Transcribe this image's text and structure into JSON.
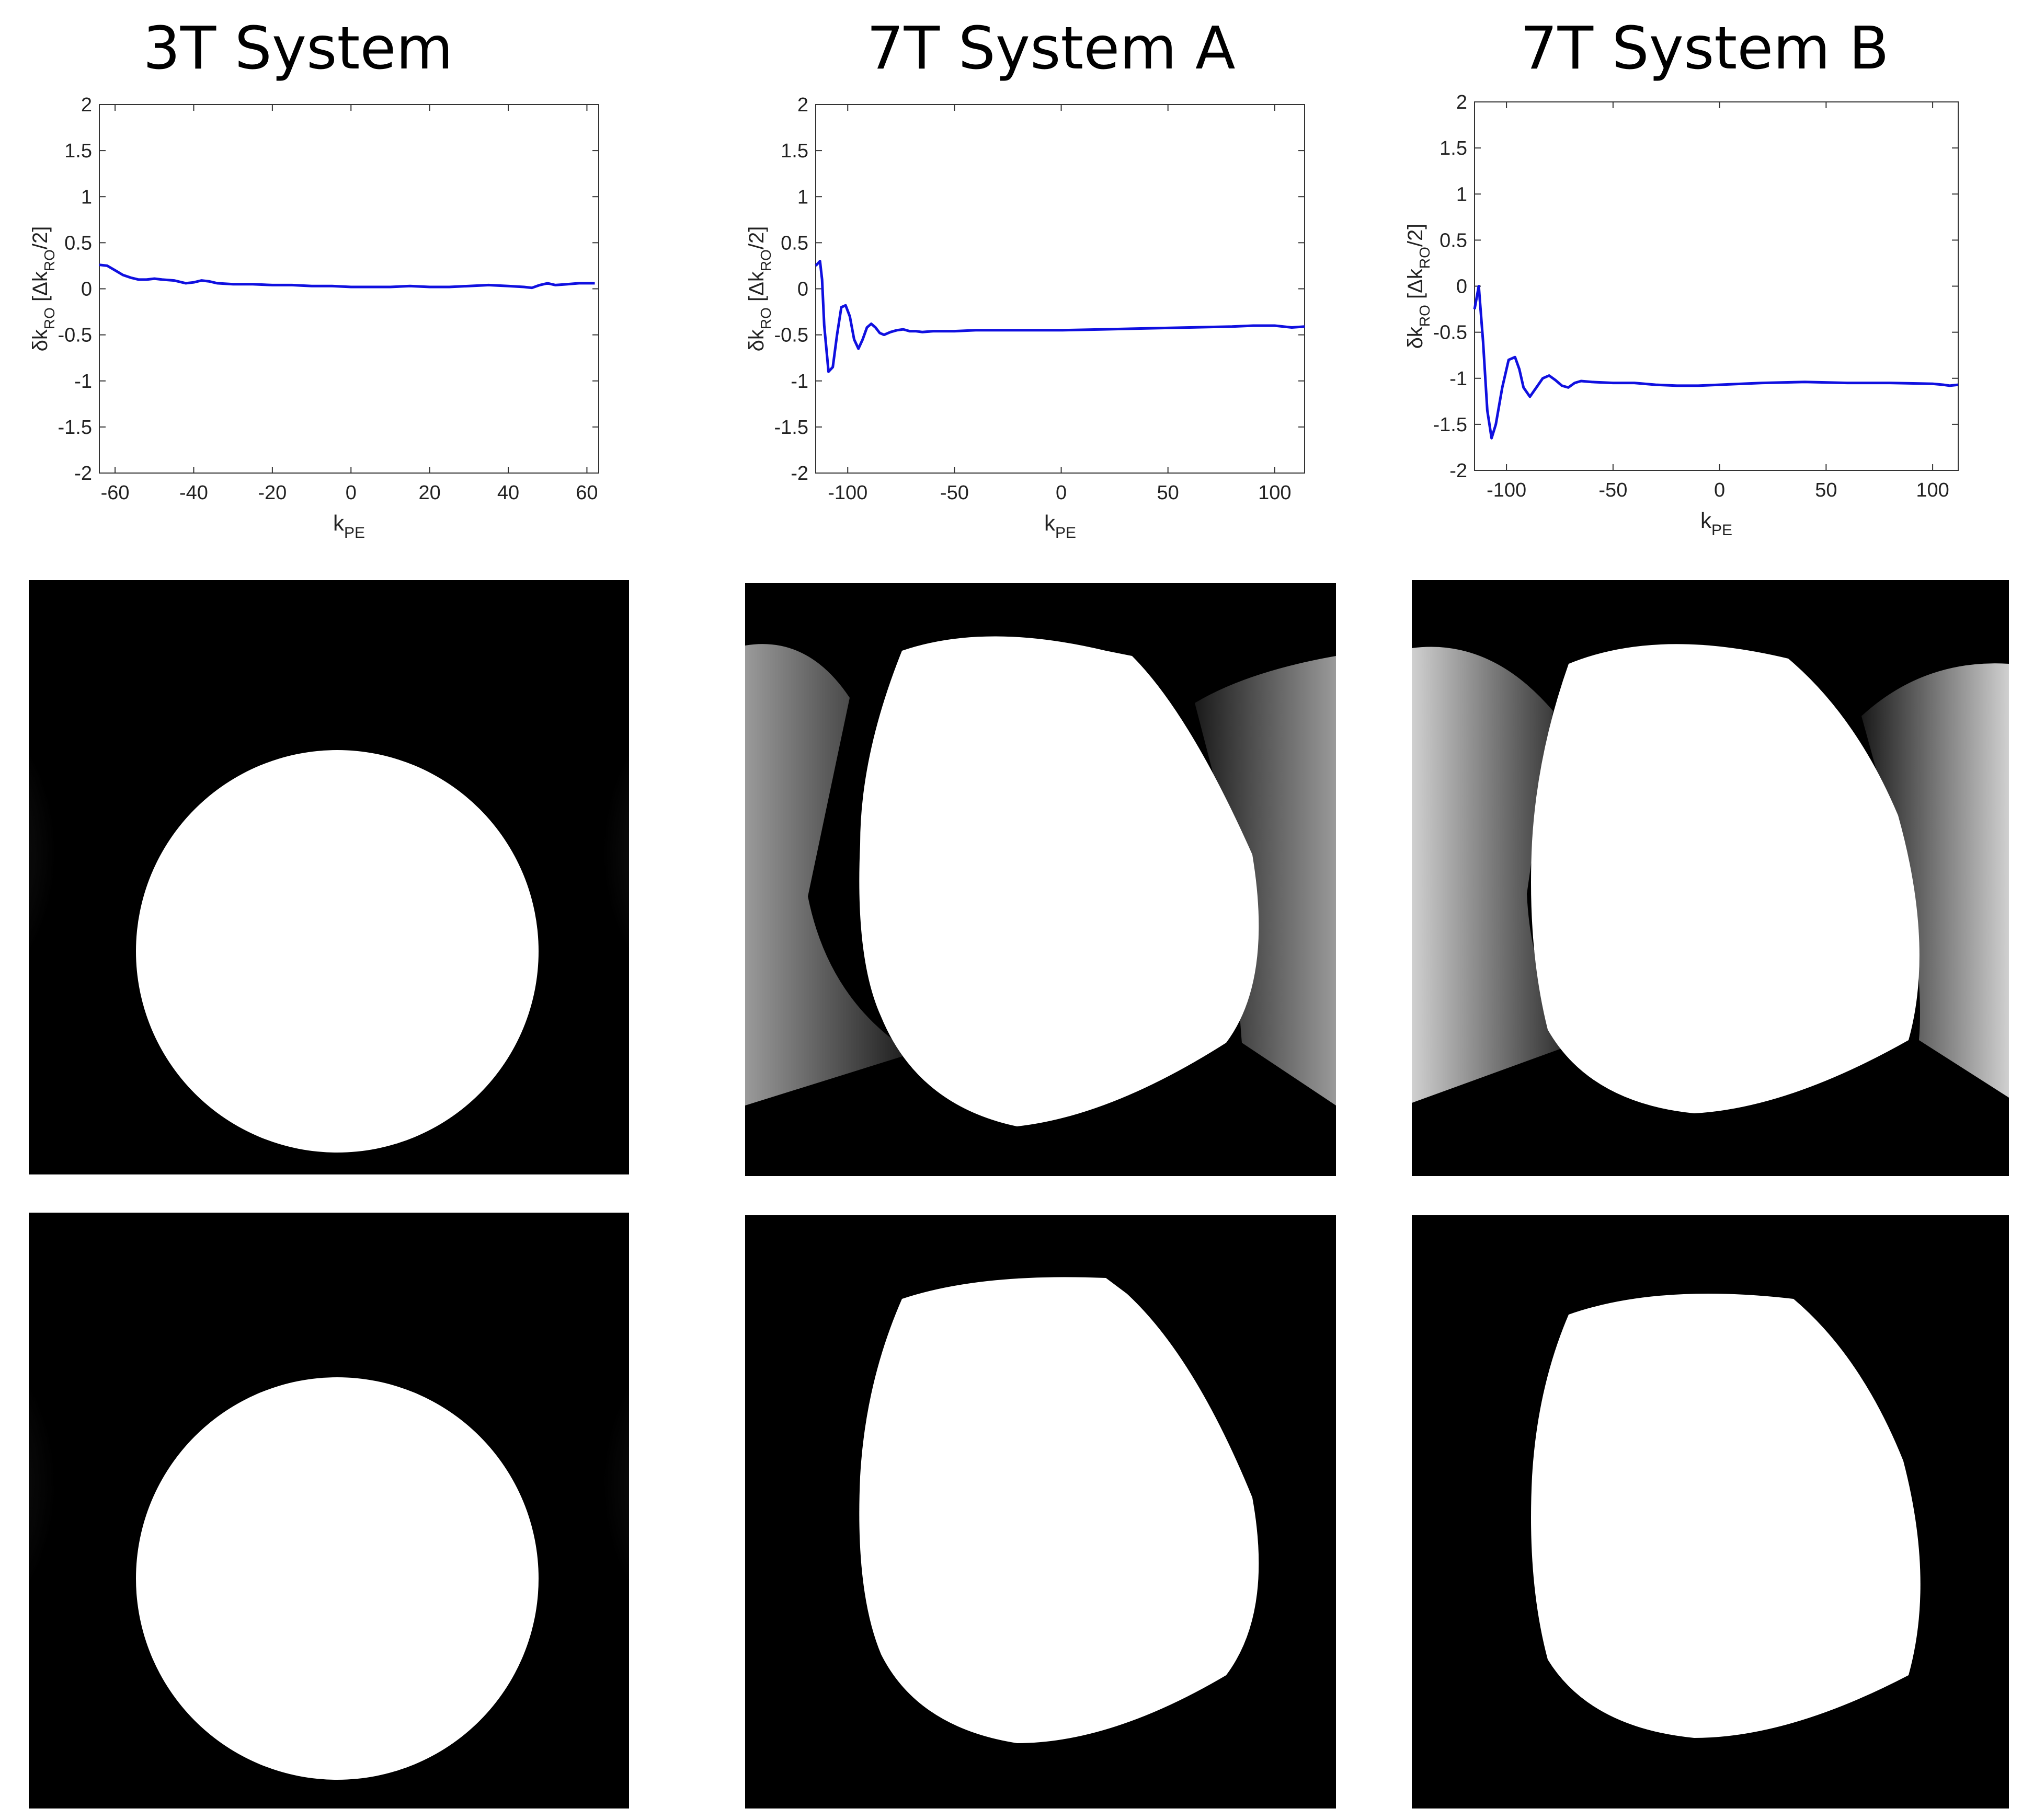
{
  "columns": [
    {
      "title": "3T System"
    },
    {
      "title": "7T System A"
    },
    {
      "title": "7T System B"
    }
  ],
  "axis_labels": {
    "x": {
      "main": "k",
      "sub": "PE"
    },
    "y": {
      "delta": "δ",
      "k": "k",
      "ro_sub": "RO",
      "bracket_open": "[Δk",
      "slash2": "/2]"
    }
  },
  "chart_data": [
    {
      "type": "line",
      "xlabel": "kPE",
      "ylabel": "δkRO [ΔkRO/2]",
      "xlim": [
        -64,
        63
      ],
      "ylim": [
        -2,
        2
      ],
      "xticks": [
        -60,
        -40,
        -20,
        0,
        20,
        40,
        60
      ],
      "yticks": [
        2,
        1.5,
        1,
        0.5,
        0,
        -0.5,
        -1,
        -1.5,
        -2
      ],
      "line_color": "#1010e0",
      "series": [
        {
          "x": [
            -64,
            -62,
            -60,
            -58,
            -56,
            -54,
            -52,
            -50,
            -48,
            -45,
            -42,
            -40,
            -38,
            -36,
            -34,
            -30,
            -25,
            -20,
            -15,
            -10,
            -5,
            0,
            5,
            10,
            15,
            20,
            25,
            30,
            35,
            40,
            44,
            46,
            48,
            50,
            52,
            55,
            58,
            62
          ],
          "y": [
            0.26,
            0.25,
            0.2,
            0.15,
            0.12,
            0.1,
            0.1,
            0.11,
            0.1,
            0.09,
            0.06,
            0.07,
            0.09,
            0.08,
            0.06,
            0.05,
            0.05,
            0.04,
            0.04,
            0.03,
            0.03,
            0.02,
            0.02,
            0.02,
            0.03,
            0.02,
            0.02,
            0.03,
            0.04,
            0.03,
            0.02,
            0.01,
            0.04,
            0.06,
            0.04,
            0.05,
            0.06,
            0.06
          ]
        }
      ]
    },
    {
      "type": "line",
      "xlabel": "kPE",
      "ylabel": "δkRO [ΔkRO/2]",
      "xlim": [
        -115,
        114
      ],
      "ylim": [
        -2,
        2
      ],
      "xticks": [
        -100,
        -50,
        0,
        50,
        100
      ],
      "yticks": [
        2,
        1.5,
        1,
        0.5,
        0,
        -0.5,
        -1,
        -1.5,
        -2
      ],
      "line_color": "#1010e0",
      "series": [
        {
          "x": [
            -115,
            -113,
            -112,
            -111,
            -109,
            -107,
            -105,
            -103,
            -101,
            -99,
            -97,
            -95,
            -93,
            -91,
            -89,
            -87,
            -85,
            -83,
            -80,
            -77,
            -74,
            -71,
            -68,
            -65,
            -60,
            -50,
            -40,
            -20,
            0,
            20,
            40,
            60,
            80,
            90,
            100,
            108,
            114
          ],
          "y": [
            0.25,
            0.3,
            0.1,
            -0.4,
            -0.9,
            -0.85,
            -0.5,
            -0.2,
            -0.18,
            -0.3,
            -0.55,
            -0.65,
            -0.55,
            -0.42,
            -0.38,
            -0.42,
            -0.48,
            -0.5,
            -0.47,
            -0.45,
            -0.44,
            -0.46,
            -0.46,
            -0.47,
            -0.46,
            -0.46,
            -0.45,
            -0.45,
            -0.45,
            -0.44,
            -0.43,
            -0.42,
            -0.41,
            -0.4,
            -0.4,
            -0.42,
            -0.41
          ]
        }
      ]
    },
    {
      "type": "line",
      "xlabel": "kPE",
      "ylabel": "δkRO [ΔkRO/2]",
      "xlim": [
        -115,
        112
      ],
      "ylim": [
        -2,
        2
      ],
      "xticks": [
        -100,
        -50,
        0,
        50,
        100
      ],
      "yticks": [
        2,
        1.5,
        1,
        0.5,
        0,
        -0.5,
        -1,
        -1.5,
        -2
      ],
      "line_color": "#1010e0",
      "series": [
        {
          "x": [
            -115,
            -113,
            -111,
            -109,
            -107,
            -105,
            -102,
            -99,
            -96,
            -94,
            -92,
            -89,
            -86,
            -83,
            -80,
            -77,
            -74,
            -71,
            -68,
            -65,
            -60,
            -50,
            -40,
            -30,
            -20,
            -10,
            0,
            20,
            40,
            60,
            80,
            100,
            105,
            108,
            112
          ],
          "y": [
            -0.25,
            0.0,
            -0.6,
            -1.35,
            -1.65,
            -1.5,
            -1.1,
            -0.8,
            -0.77,
            -0.9,
            -1.1,
            -1.2,
            -1.1,
            -1.0,
            -0.97,
            -1.02,
            -1.08,
            -1.1,
            -1.05,
            -1.03,
            -1.04,
            -1.05,
            -1.05,
            -1.07,
            -1.08,
            -1.08,
            -1.07,
            -1.05,
            -1.04,
            -1.05,
            -1.05,
            -1.06,
            -1.07,
            -1.08,
            -1.07
          ]
        }
      ]
    }
  ]
}
